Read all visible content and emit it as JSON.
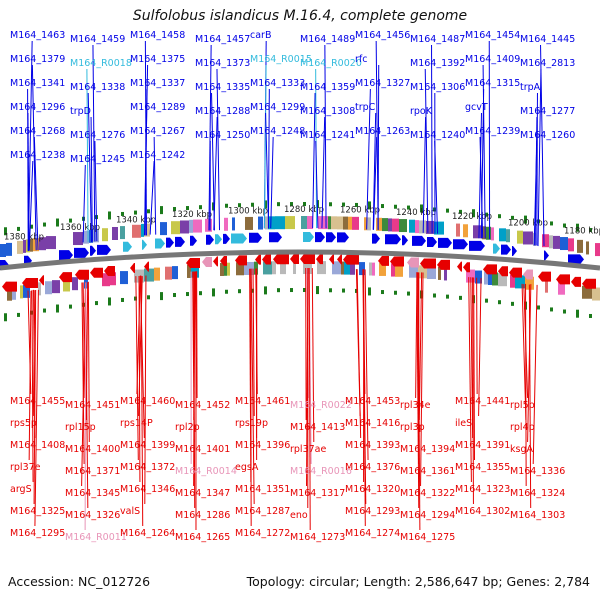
{
  "title": "Sulfolobus islandicus M.16.4, complete genome",
  "footer": {
    "accession": "Accession: NC_012726",
    "summary": "Topology: circular; Length: 2,586,647 bp; Genes: 2,784"
  },
  "colors": {
    "forward": "#0000e6",
    "reverse": "#e60000",
    "rna_forward": "#33bbdd",
    "rna_reverse": "#e895b8",
    "backbone": "#777777",
    "tick": "#1b7a1b",
    "cog_palette": [
      "#e83a8a",
      "#1f5fd6",
      "#f2a23b",
      "#7a3fa8",
      "#b9b9b9",
      "#00a0c8",
      "#c8c84a",
      "#3d8a3d",
      "#e07070",
      "#9aa8d8",
      "#d8c090",
      "#f06abf",
      "#4aa0a0",
      "#8c6c3c"
    ]
  },
  "scale_labels": [
    "1380 kbp",
    "1360 kbp",
    "1340 kbp",
    "1320 kbp",
    "1300 kbp",
    "1280 kbp",
    "1260 kbp",
    "1240 kbp",
    "1220 kbp",
    "1200 kbp",
    "1180 kbp"
  ],
  "top_labels": [
    {
      "text": "M164_1463",
      "strand": "f"
    },
    {
      "text": "M164_1459",
      "strand": "f"
    },
    {
      "text": "M164_1458",
      "strand": "f"
    },
    {
      "text": "M164_1457",
      "strand": "f"
    },
    {
      "text": "carB",
      "strand": "f"
    },
    {
      "text": "M164_1489",
      "strand": "f"
    },
    {
      "text": "M164_1456",
      "strand": "f"
    },
    {
      "text": "M164_1487",
      "strand": "f"
    },
    {
      "text": "M164_1454",
      "strand": "f"
    },
    {
      "text": "M164_1445",
      "strand": "f"
    },
    {
      "text": "M164_1379",
      "strand": "f"
    },
    {
      "text": "M164_R0018",
      "strand": "rna"
    },
    {
      "text": "M164_1375",
      "strand": "f"
    },
    {
      "text": "M164_1373",
      "strand": "f"
    },
    {
      "text": "M164_R0015",
      "strand": "rna"
    },
    {
      "text": "M164_R0020",
      "strand": "rna"
    },
    {
      "text": "rfc",
      "strand": "f"
    },
    {
      "text": "M164_1392",
      "strand": "f"
    },
    {
      "text": "M164_1409",
      "strand": "f"
    },
    {
      "text": "M164_2813",
      "strand": "f"
    },
    {
      "text": "M164_1341",
      "strand": "f"
    },
    {
      "text": "M164_1338",
      "strand": "f"
    },
    {
      "text": "M164_1337",
      "strand": "f"
    },
    {
      "text": "M164_1335",
      "strand": "f"
    },
    {
      "text": "M164_1333",
      "strand": "f"
    },
    {
      "text": "M164_1359",
      "strand": "f"
    },
    {
      "text": "M164_1327",
      "strand": "f"
    },
    {
      "text": "M164_1306",
      "strand": "f"
    },
    {
      "text": "M164_1315",
      "strand": "f"
    },
    {
      "text": "trpA",
      "strand": "f"
    },
    {
      "text": "M164_1296",
      "strand": "f"
    },
    {
      "text": "trpD",
      "strand": "f"
    },
    {
      "text": "M164_1289",
      "strand": "f"
    },
    {
      "text": "M164_1288",
      "strand": "f"
    },
    {
      "text": "M164_1299",
      "strand": "f"
    },
    {
      "text": "M164_1308",
      "strand": "f"
    },
    {
      "text": "trpC",
      "strand": "f"
    },
    {
      "text": "rpoK",
      "strand": "f"
    },
    {
      "text": "gcvT",
      "strand": "f"
    },
    {
      "text": "M164_1277",
      "strand": "f"
    },
    {
      "text": "M164_1268",
      "strand": "f"
    },
    {
      "text": "M164_1276",
      "strand": "f"
    },
    {
      "text": "M164_1267",
      "strand": "f"
    },
    {
      "text": "M164_1250",
      "strand": "f"
    },
    {
      "text": "M164_1248",
      "strand": "f"
    },
    {
      "text": "M164_1241",
      "strand": "f"
    },
    {
      "text": "M164_1263",
      "strand": "f"
    },
    {
      "text": "M164_1240",
      "strand": "f"
    },
    {
      "text": "M164_1239",
      "strand": "f"
    },
    {
      "text": "M164_1260",
      "strand": "f"
    },
    {
      "text": "M164_1238",
      "strand": "f"
    },
    {
      "text": "M164_1245",
      "strand": "f"
    },
    {
      "text": "M164_1242",
      "strand": "f"
    }
  ],
  "bottom_labels": [
    {
      "text": "M164_1455",
      "strand": "r"
    },
    {
      "text": "M164_1451",
      "strand": "r"
    },
    {
      "text": "M164_1460",
      "strand": "r"
    },
    {
      "text": "M164_1452",
      "strand": "r"
    },
    {
      "text": "M164_1461",
      "strand": "r"
    },
    {
      "text": "M164_R0022",
      "strand": "rna"
    },
    {
      "text": "M164_1453",
      "strand": "r"
    },
    {
      "text": "rpl34e",
      "strand": "r"
    },
    {
      "text": "M164_1441",
      "strand": "r"
    },
    {
      "text": "rpl5p",
      "strand": "r"
    },
    {
      "text": "rps5p",
      "strand": "r"
    },
    {
      "text": "rpl15p",
      "strand": "r"
    },
    {
      "text": "rps14P",
      "strand": "r"
    },
    {
      "text": "rpl2p",
      "strand": "r"
    },
    {
      "text": "rps19p",
      "strand": "r"
    },
    {
      "text": "M164_1413",
      "strand": "r"
    },
    {
      "text": "M164_1416",
      "strand": "r"
    },
    {
      "text": "rpl3p",
      "strand": "r"
    },
    {
      "text": "ileS",
      "strand": "r"
    },
    {
      "text": "rpl4p",
      "strand": "r"
    },
    {
      "text": "M164_1408",
      "strand": "r"
    },
    {
      "text": "M164_1400",
      "strand": "r"
    },
    {
      "text": "M164_1399",
      "strand": "r"
    },
    {
      "text": "M164_1401",
      "strand": "r"
    },
    {
      "text": "M164_1396",
      "strand": "r"
    },
    {
      "text": "rpl37ae",
      "strand": "r"
    },
    {
      "text": "M164_1393",
      "strand": "r"
    },
    {
      "text": "M164_1394",
      "strand": "r"
    },
    {
      "text": "M164_1391",
      "strand": "r"
    },
    {
      "text": "ksgA",
      "strand": "r"
    },
    {
      "text": "rpl37e",
      "strand": "r"
    },
    {
      "text": "M164_1371",
      "strand": "r"
    },
    {
      "text": "M164_1372",
      "strand": "r"
    },
    {
      "text": "M164_R0014",
      "strand": "rna"
    },
    {
      "text": "egsA",
      "strand": "r"
    },
    {
      "text": "M164_R0016",
      "strand": "rna"
    },
    {
      "text": "M164_1376",
      "strand": "r"
    },
    {
      "text": "M164_1361",
      "strand": "r"
    },
    {
      "text": "M164_1355",
      "strand": "r"
    },
    {
      "text": "M164_1336",
      "strand": "r"
    },
    {
      "text": "argS",
      "strand": "r"
    },
    {
      "text": "M164_1345",
      "strand": "r"
    },
    {
      "text": "M164_1346",
      "strand": "r"
    },
    {
      "text": "M164_1347",
      "strand": "r"
    },
    {
      "text": "M164_1351",
      "strand": "r"
    },
    {
      "text": "M164_1317",
      "strand": "r"
    },
    {
      "text": "M164_1320",
      "strand": "r"
    },
    {
      "text": "M164_1322",
      "strand": "r"
    },
    {
      "text": "M164_1323",
      "strand": "r"
    },
    {
      "text": "M164_1324",
      "strand": "r"
    },
    {
      "text": "M164_1325",
      "strand": "r"
    },
    {
      "text": "M164_1326",
      "strand": "r"
    },
    {
      "text": "valS",
      "strand": "r"
    },
    {
      "text": "M164_1286",
      "strand": "r"
    },
    {
      "text": "M164_1287",
      "strand": "r"
    },
    {
      "text": "eno",
      "strand": "r"
    },
    {
      "text": "M164_1293",
      "strand": "r"
    },
    {
      "text": "M164_1294",
      "strand": "r"
    },
    {
      "text": "M164_1302",
      "strand": "r"
    },
    {
      "text": "M164_1303",
      "strand": "r"
    },
    {
      "text": "M164_1295",
      "strand": "r"
    },
    {
      "text": "M164_R0011",
      "strand": "rna"
    },
    {
      "text": "M164_1264",
      "strand": "r"
    },
    {
      "text": "M164_1265",
      "strand": "r"
    },
    {
      "text": "M164_1272",
      "strand": "r"
    },
    {
      "text": "M164_1273",
      "strand": "r"
    },
    {
      "text": "M164_1274",
      "strand": "r"
    },
    {
      "text": "M164_1275",
      "strand": "r"
    }
  ]
}
